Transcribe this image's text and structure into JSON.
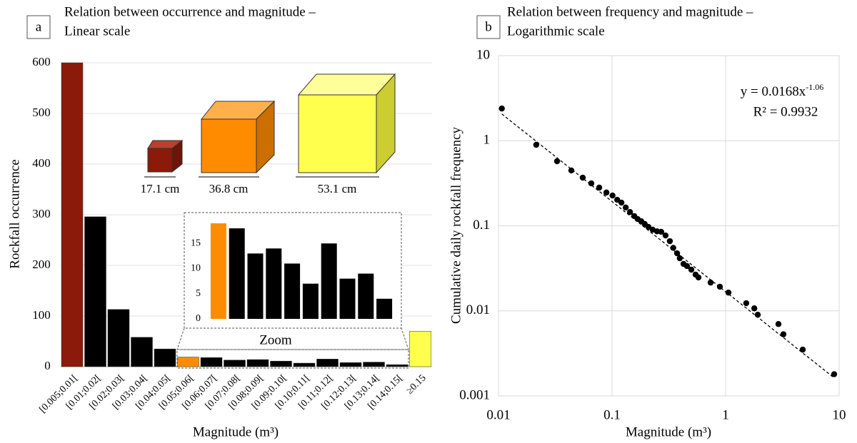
{
  "chart_data": [
    {
      "type": "bar",
      "panel": "a",
      "title": [
        "Relation between occurrence and magnitude –",
        "Linear scale"
      ],
      "x_label": "Magnitude (m³)",
      "y_label": "Rockfall occurrence",
      "categories": [
        "[0.005;0.01[",
        "[0.01;0.02[",
        "[0.02;0.03[",
        "[0.03;0.04[",
        "[0.04;0.05[",
        "[0.05;0.06[",
        "[0.06;0.07[",
        "[0.07;0.08[",
        "[0.08;0.09[",
        "[0.09;0.10[",
        "[0.10;0.11[",
        "[0.11;0.12[",
        "[0.12;0.13[",
        "[0.13;0.14[",
        "[0.14;0.15[",
        "≥0.15"
      ],
      "values": [
        600,
        296,
        113,
        58,
        35,
        19,
        18,
        13,
        14,
        11,
        7,
        15,
        8,
        9,
        4,
        70
      ],
      "colors": [
        "#8b1a0a",
        "#000000",
        "#000000",
        "#000000",
        "#000000",
        "#ff8c00",
        "#000000",
        "#000000",
        "#000000",
        "#000000",
        "#000000",
        "#000000",
        "#000000",
        "#000000",
        "#000000",
        "#ffff4d"
      ],
      "ylim": [
        0,
        600
      ],
      "yticks": [
        0,
        100,
        200,
        300,
        400,
        500,
        600
      ],
      "grid": true,
      "inset": {
        "label": "Zoom",
        "ylim": [
          0,
          20
        ],
        "yticks": [
          0,
          5,
          10,
          15
        ]
      },
      "annotations": [
        "17.1 cm",
        "36.8 cm",
        "53.1 cm"
      ]
    },
    {
      "type": "scatter",
      "panel": "b",
      "title": [
        "Relation between frequency and magnitude –",
        "Logarithmic scale"
      ],
      "x_label": "Magnitude (m³)",
      "y_label": "Cumulative daily rockfall frequency",
      "x": [
        0.0107,
        0.0215,
        0.0328,
        0.0438,
        0.0552,
        0.0657,
        0.0771,
        0.0892,
        0.101,
        0.111,
        0.121,
        0.132,
        0.144,
        0.157,
        0.168,
        0.181,
        0.194,
        0.209,
        0.228,
        0.249,
        0.271,
        0.296,
        0.323,
        0.346,
        0.374,
        0.395,
        0.426,
        0.457,
        0.499,
        0.544,
        0.577,
        0.738,
        0.891,
        1.06,
        1.52,
        1.79,
        1.92,
        2.92,
        3.23,
        4.78,
        9.04
      ],
      "values": [
        2.39,
        0.895,
        0.574,
        0.447,
        0.368,
        0.315,
        0.281,
        0.246,
        0.227,
        0.202,
        0.187,
        0.164,
        0.145,
        0.13,
        0.12,
        0.113,
        0.105,
        0.097,
        0.09,
        0.086,
        0.085,
        0.077,
        0.066,
        0.055,
        0.0475,
        0.0415,
        0.0356,
        0.0336,
        0.0305,
        0.0267,
        0.0247,
        0.0215,
        0.0192,
        0.0164,
        0.0123,
        0.0107,
        0.009,
        0.007,
        0.0053,
        0.0035,
        0.0018
      ],
      "color": "#000000",
      "xlim": [
        0.01,
        10
      ],
      "ylim": [
        0.001,
        10
      ],
      "xticks": [
        0.01,
        0.1,
        1,
        10
      ],
      "yticks": [
        0.001,
        0.01,
        0.1,
        1,
        10
      ],
      "log": true,
      "grid": true,
      "trendline": {
        "coefficient": 0.0168,
        "exponent": -1.06,
        "equation": "y = 0.0168x",
        "superscript": "-1.06",
        "r2": "R² = 0.9932"
      }
    }
  ]
}
